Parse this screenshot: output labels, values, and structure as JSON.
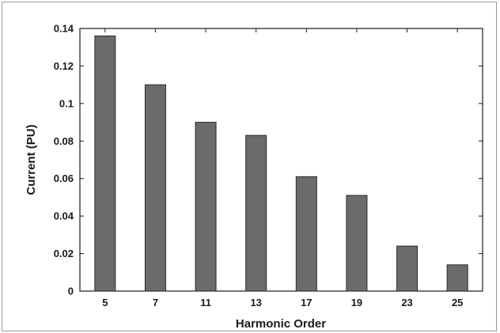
{
  "chart_data": {
    "type": "bar",
    "title": "",
    "xlabel": "Harmonic Order",
    "ylabel": "Current (PU)",
    "categories": [
      "5",
      "7",
      "11",
      "13",
      "17",
      "19",
      "23",
      "25"
    ],
    "values": [
      0.136,
      0.11,
      0.09,
      0.083,
      0.061,
      0.051,
      0.024,
      0.014
    ],
    "ylim": [
      0,
      0.14
    ],
    "yticks": [
      "0",
      "0.02",
      "0.04",
      "0.06",
      "0.08",
      "0.1",
      "0.12",
      "0.14"
    ],
    "bar_color": "#6b6b6b",
    "bar_edge_color": "#2b2b2b",
    "grid": false,
    "legend": "none"
  }
}
